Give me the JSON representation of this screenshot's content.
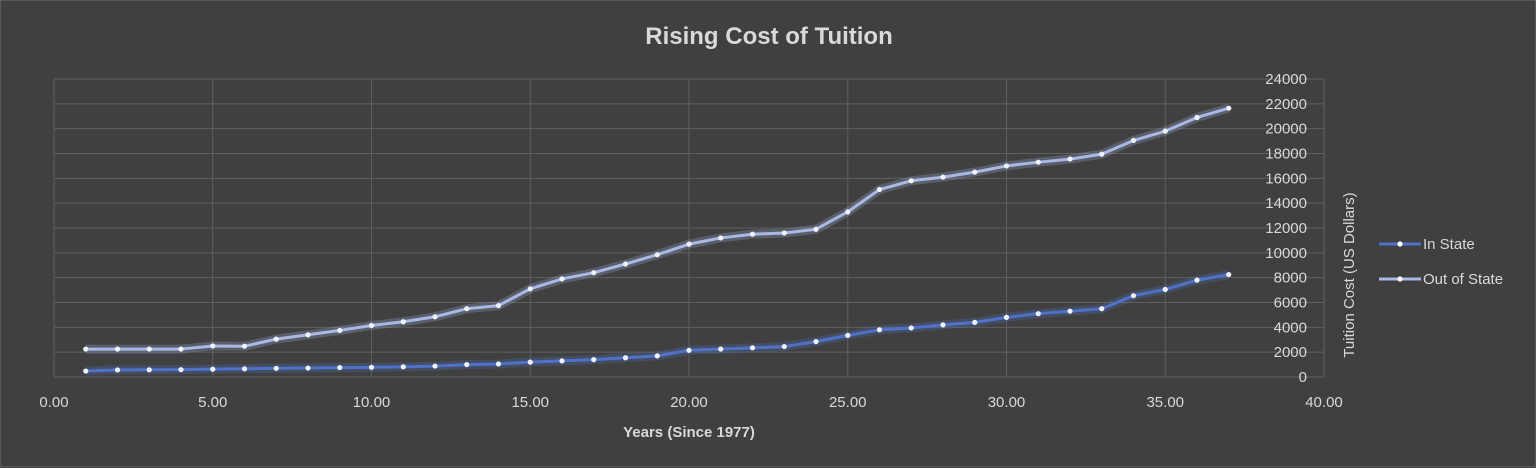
{
  "colors": {
    "background": "#404040",
    "grid": "#5f5f5f",
    "text": "#d9d9d9",
    "in_state": "#4f72c8",
    "out_of_state": "#a9b8e4"
  },
  "chart_data": {
    "type": "line",
    "title": "Rising Cost of Tuition",
    "xlabel": "Years (Since 1977)",
    "ylabel": "Tuition Cost (US Dollars)",
    "xlim": [
      0,
      40
    ],
    "ylim": [
      0,
      24000
    ],
    "x_ticks": [
      "0.00",
      "5.00",
      "10.00",
      "15.00",
      "20.00",
      "25.00",
      "30.00",
      "35.00",
      "40.00"
    ],
    "y_ticks": [
      "0",
      "2000",
      "4000",
      "6000",
      "8000",
      "10000",
      "12000",
      "14000",
      "16000",
      "18000",
      "20000",
      "22000",
      "24000"
    ],
    "x_tick_values": [
      0,
      5,
      10,
      15,
      20,
      25,
      30,
      35,
      40
    ],
    "y_tick_values": [
      0,
      2000,
      4000,
      6000,
      8000,
      10000,
      12000,
      14000,
      16000,
      18000,
      20000,
      22000,
      24000
    ],
    "grid": true,
    "legend_position": "right",
    "x": [
      1,
      2,
      3,
      4,
      5,
      6,
      7,
      8,
      9,
      10,
      11,
      12,
      13,
      14,
      15,
      16,
      17,
      18,
      19,
      20,
      21,
      22,
      23,
      24,
      25,
      26,
      27,
      28,
      29,
      30,
      31,
      32,
      33,
      34,
      35,
      36,
      37
    ],
    "series": [
      {
        "name": "In State",
        "values": [
          480,
          570,
          580,
          590,
          630,
          660,
          700,
          720,
          760,
          780,
          820,
          880,
          1000,
          1050,
          1200,
          1300,
          1400,
          1550,
          1700,
          2150,
          2250,
          2350,
          2450,
          2850,
          3350,
          3800,
          3950,
          4200,
          4400,
          4800,
          5100,
          5300,
          5500,
          6550,
          7050,
          7800,
          8250
        ]
      },
      {
        "name": "Out of State",
        "values": [
          2250,
          2250,
          2250,
          2250,
          2500,
          2480,
          3050,
          3400,
          3750,
          4150,
          4450,
          4850,
          5500,
          5750,
          7100,
          7900,
          8400,
          9100,
          9850,
          10700,
          11200,
          11500,
          11600,
          11900,
          13300,
          15100,
          15800,
          16100,
          16500,
          17000,
          17300,
          17550,
          17950,
          19050,
          19800,
          20900,
          21650
        ]
      }
    ]
  }
}
